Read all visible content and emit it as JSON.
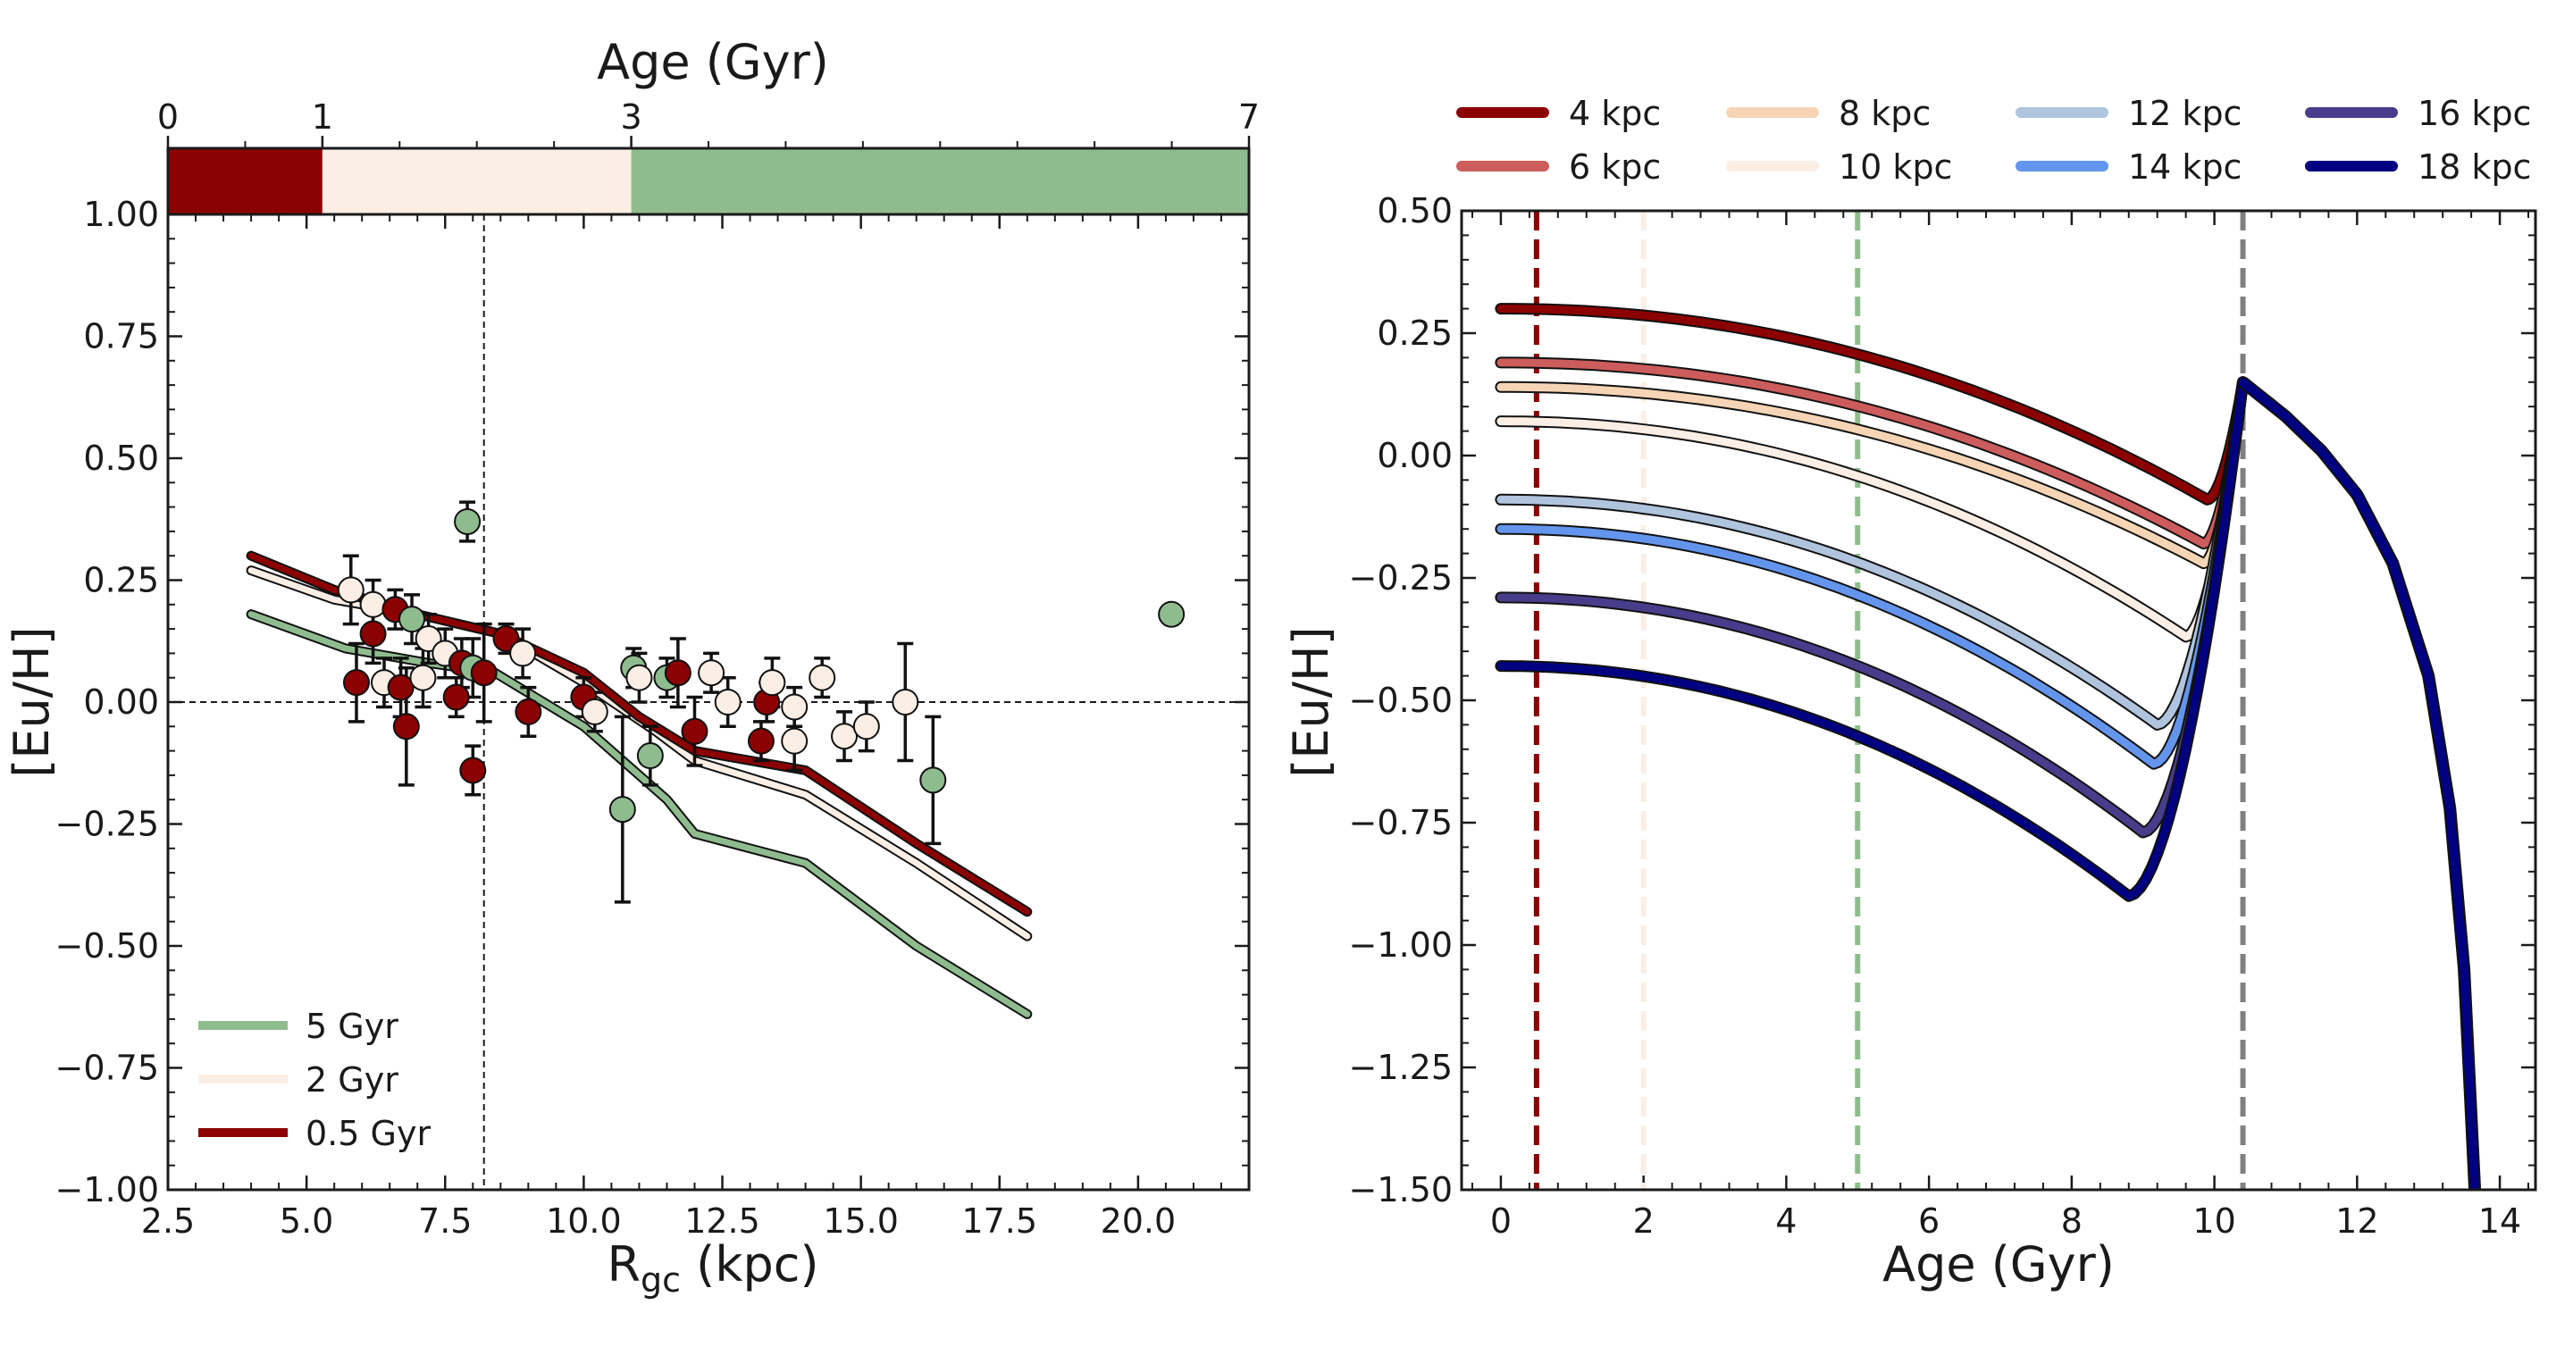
{
  "chart_data": [
    {
      "type": "scatter",
      "xlabel": "R",
      "xlabel_sub": "gc",
      "xlabel_unit": " (kpc)",
      "ylabel": "[Eu/H]",
      "xlim": [
        2.5,
        22.0
      ],
      "ylim": [
        -1.0,
        1.0
      ],
      "xticks": [
        "2.5",
        "5.0",
        "7.5",
        "10.0",
        "12.5",
        "15.0",
        "17.5",
        "20.0"
      ],
      "yticks": [
        "−1.00",
        "−0.75",
        "−0.50",
        "−0.25",
        "0.00",
        "0.25",
        "0.50",
        "0.75",
        "1.00"
      ],
      "reference_lines": {
        "x": 8.2,
        "y": 0.0
      },
      "age_bar": {
        "label": "Age (Gyr)",
        "ticks": [
          "0",
          "1",
          "3",
          "7"
        ],
        "bins": [
          {
            "from": 0,
            "to": 1,
            "color": "#8b0000"
          },
          {
            "from": 1,
            "to": 3,
            "color": "#fbeee4"
          },
          {
            "from": 3,
            "to": 7,
            "color": "#8fbc8f"
          }
        ]
      },
      "series": [
        {
          "name": "5 Gyr",
          "color": "#8fbc8f",
          "x": [
            4.0,
            5.7,
            7.2,
            8.4,
            10.0,
            11.5,
            12.0,
            14.0,
            16.0,
            18.0
          ],
          "y": [
            0.18,
            0.11,
            0.08,
            0.06,
            -0.05,
            -0.2,
            -0.27,
            -0.33,
            -0.5,
            -0.64
          ]
        },
        {
          "name": "2 Gyr",
          "color": "#fbeee4",
          "x": [
            4.0,
            5.5,
            7.0,
            8.5,
            10.0,
            11.3,
            12.0,
            14.0,
            16.0,
            18.0
          ],
          "y": [
            0.27,
            0.21,
            0.18,
            0.14,
            0.04,
            -0.06,
            -0.12,
            -0.19,
            -0.33,
            -0.48
          ]
        },
        {
          "name": "0.5 Gyr",
          "color": "#8b0000",
          "x": [
            4.0,
            5.5,
            7.0,
            8.5,
            10.0,
            11.0,
            12.0,
            14.0,
            16.0,
            18.0
          ],
          "y": [
            0.3,
            0.23,
            0.18,
            0.14,
            0.06,
            -0.03,
            -0.1,
            -0.14,
            -0.29,
            -0.43
          ]
        }
      ],
      "points": [
        {
          "x": 5.8,
          "y": 0.23,
          "err": 0.07,
          "color": "#fbeee4"
        },
        {
          "x": 5.9,
          "y": 0.04,
          "err": 0.08,
          "color": "#8b0000"
        },
        {
          "x": 6.2,
          "y": 0.14,
          "err": 0.06,
          "color": "#8b0000"
        },
        {
          "x": 6.2,
          "y": 0.2,
          "err": 0.05,
          "color": "#fbeee4"
        },
        {
          "x": 6.4,
          "y": 0.04,
          "err": 0.05,
          "color": "#fbeee4"
        },
        {
          "x": 6.6,
          "y": 0.19,
          "err": 0.04,
          "color": "#8b0000"
        },
        {
          "x": 6.7,
          "y": 0.03,
          "err": 0.06,
          "color": "#8b0000"
        },
        {
          "x": 6.8,
          "y": -0.05,
          "err": 0.12,
          "color": "#8b0000"
        },
        {
          "x": 6.9,
          "y": 0.17,
          "err": 0.05,
          "color": "#8fbc8f"
        },
        {
          "x": 7.1,
          "y": 0.05,
          "err": 0.06,
          "color": "#fbeee4"
        },
        {
          "x": 7.2,
          "y": 0.13,
          "err": 0.05,
          "color": "#fbeee4"
        },
        {
          "x": 7.5,
          "y": 0.1,
          "err": 0.05,
          "color": "#fbeee4"
        },
        {
          "x": 7.7,
          "y": 0.01,
          "err": 0.04,
          "color": "#8b0000"
        },
        {
          "x": 7.9,
          "y": 0.37,
          "err": 0.04,
          "color": "#8fbc8f"
        },
        {
          "x": 7.8,
          "y": 0.08,
          "err": 0.05,
          "color": "#8b0000"
        },
        {
          "x": 8.0,
          "y": -0.14,
          "err": 0.05,
          "color": "#8b0000"
        },
        {
          "x": 8.0,
          "y": 0.07,
          "err": 0.06,
          "color": "#8fbc8f"
        },
        {
          "x": 8.2,
          "y": 0.06,
          "err": 0.1,
          "color": "#8b0000"
        },
        {
          "x": 8.6,
          "y": 0.13,
          "err": 0.03,
          "color": "#8b0000"
        },
        {
          "x": 8.9,
          "y": 0.1,
          "err": 0.05,
          "color": "#fbeee4"
        },
        {
          "x": 9.0,
          "y": -0.02,
          "err": 0.05,
          "color": "#8b0000"
        },
        {
          "x": 10.0,
          "y": 0.01,
          "err": 0.04,
          "color": "#8b0000"
        },
        {
          "x": 10.2,
          "y": -0.02,
          "err": 0.04,
          "color": "#fbeee4"
        },
        {
          "x": 10.7,
          "y": -0.22,
          "err": 0.19,
          "color": "#8fbc8f"
        },
        {
          "x": 10.9,
          "y": 0.07,
          "err": 0.04,
          "color": "#8fbc8f"
        },
        {
          "x": 11.0,
          "y": 0.05,
          "err": 0.05,
          "color": "#fbeee4"
        },
        {
          "x": 11.2,
          "y": -0.11,
          "err": 0.06,
          "color": "#8fbc8f"
        },
        {
          "x": 11.5,
          "y": 0.05,
          "err": 0.04,
          "color": "#8fbc8f"
        },
        {
          "x": 11.7,
          "y": 0.06,
          "err": 0.07,
          "color": "#8b0000"
        },
        {
          "x": 12.0,
          "y": -0.06,
          "err": 0.07,
          "color": "#8b0000"
        },
        {
          "x": 12.3,
          "y": 0.06,
          "err": 0.04,
          "color": "#fbeee4"
        },
        {
          "x": 12.6,
          "y": 0.0,
          "err": 0.05,
          "color": "#fbeee4"
        },
        {
          "x": 13.2,
          "y": -0.08,
          "err": 0.04,
          "color": "#8b0000"
        },
        {
          "x": 13.3,
          "y": 0.0,
          "err": 0.04,
          "color": "#8b0000"
        },
        {
          "x": 13.4,
          "y": 0.04,
          "err": 0.05,
          "color": "#fbeee4"
        },
        {
          "x": 13.8,
          "y": -0.01,
          "err": 0.04,
          "color": "#fbeee4"
        },
        {
          "x": 13.8,
          "y": -0.08,
          "err": 0.06,
          "color": "#fbeee4"
        },
        {
          "x": 14.3,
          "y": 0.05,
          "err": 0.04,
          "color": "#fbeee4"
        },
        {
          "x": 14.7,
          "y": -0.07,
          "err": 0.05,
          "color": "#fbeee4"
        },
        {
          "x": 15.1,
          "y": -0.05,
          "err": 0.05,
          "color": "#fbeee4"
        },
        {
          "x": 15.8,
          "y": 0.0,
          "err": 0.12,
          "color": "#fbeee4"
        },
        {
          "x": 16.3,
          "y": -0.16,
          "err": 0.13,
          "color": "#8fbc8f"
        },
        {
          "x": 20.6,
          "y": 0.18,
          "err": 0.0,
          "color": "#8fbc8f"
        }
      ],
      "legend": {
        "position": "lower-left",
        "entries": [
          "5 Gyr",
          "2 Gyr",
          "0.5 Gyr"
        ]
      }
    },
    {
      "type": "line",
      "xlabel": "Age (Gyr)",
      "ylabel": "[Eu/H]",
      "xlim": [
        -0.55,
        14.5
      ],
      "ylim": [
        -1.5,
        0.5
      ],
      "xticks": [
        "0",
        "2",
        "4",
        "6",
        "8",
        "10",
        "12",
        "14"
      ],
      "yticks": [
        "−1.50",
        "−1.25",
        "−1.00",
        "−0.75",
        "−0.50",
        "−0.25",
        "0.00",
        "0.25",
        "0.50"
      ],
      "vlines": [
        {
          "x": 0.5,
          "color": "#8b0000"
        },
        {
          "x": 2.0,
          "color": "#fbeee4"
        },
        {
          "x": 5.0,
          "color": "#8fbc8f"
        },
        {
          "x": 10.4,
          "color": "#808080"
        }
      ],
      "peak": {
        "x": 10.4,
        "y": 0.15
      },
      "decline": {
        "x": [
          10.4,
          11.0,
          11.5,
          12.0,
          12.5,
          13.0,
          13.3,
          13.5,
          13.65
        ],
        "y": [
          0.15,
          0.08,
          0.01,
          -0.08,
          -0.22,
          -0.45,
          -0.72,
          -1.05,
          -1.5
        ]
      },
      "series": [
        {
          "name": "4 kpc",
          "color": "#8b0000",
          "y0": 0.3,
          "min": {
            "x": 9.9,
            "y": -0.09
          }
        },
        {
          "name": "6 kpc",
          "color": "#cd5c5c",
          "y0": 0.19,
          "min": {
            "x": 9.85,
            "y": -0.18
          }
        },
        {
          "name": "8 kpc",
          "color": "#f5d5b5",
          "y0": 0.14,
          "min": {
            "x": 9.85,
            "y": -0.22
          }
        },
        {
          "name": "10 kpc",
          "color": "#fbeee4",
          "y0": 0.07,
          "min": {
            "x": 9.6,
            "y": -0.37
          }
        },
        {
          "name": "12 kpc",
          "color": "#b0c4de",
          "y0": -0.09,
          "min": {
            "x": 9.2,
            "y": -0.55
          }
        },
        {
          "name": "14 kpc",
          "color": "#6495ed",
          "y0": -0.15,
          "min": {
            "x": 9.15,
            "y": -0.63
          }
        },
        {
          "name": "16 kpc",
          "color": "#483d8b",
          "y0": -0.29,
          "min": {
            "x": 9.0,
            "y": -0.77
          }
        },
        {
          "name": "18 kpc",
          "color": "#000080",
          "y0": -0.43,
          "min": {
            "x": 8.8,
            "y": -0.9
          }
        }
      ],
      "legend": {
        "position": "top",
        "columns": 4
      }
    }
  ]
}
